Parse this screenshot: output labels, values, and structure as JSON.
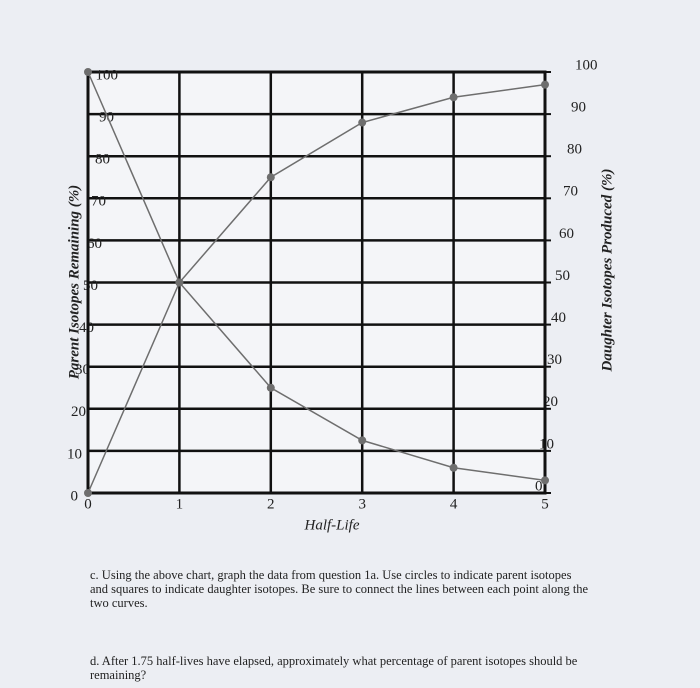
{
  "chart_data": {
    "type": "line",
    "y_label": "Parent Isotopes Remaining (%)",
    "y2_label": "Daughter Isotopes Produced (%)",
    "x_label": "Half-Life",
    "x": [
      0,
      1,
      2,
      3,
      4,
      5
    ],
    "xlim": [
      0,
      5
    ],
    "xticks": [
      0,
      1,
      2,
      3,
      4,
      5
    ],
    "ylim": [
      0,
      100
    ],
    "yticks": [
      0,
      10,
      20,
      30,
      40,
      50,
      60,
      70,
      80,
      90,
      100
    ],
    "y2lim": [
      0,
      100
    ],
    "y2ticks": [
      0,
      10,
      20,
      30,
      40,
      50,
      60,
      70,
      80,
      90,
      100
    ],
    "grid": true,
    "series": [
      {
        "name": "Parent isotopes",
        "color": "#6e6e6e",
        "values": [
          100,
          50,
          25,
          12.5,
          6,
          3
        ]
      },
      {
        "name": "Daughter isotopes",
        "color": "#6e6e6e",
        "axis": "y2",
        "values": [
          0,
          50,
          75,
          88,
          94,
          97
        ]
      }
    ]
  },
  "questions": [
    "c. Using the above chart, graph the data from question 1a. Use circles to indicate parent isotopes and squares to indicate daughter isotopes. Be sure to connect the lines between each point along the two curves.",
    "d. After 1.75 half-lives have elapsed, approximately what percentage of parent isotopes should be remaining?"
  ]
}
